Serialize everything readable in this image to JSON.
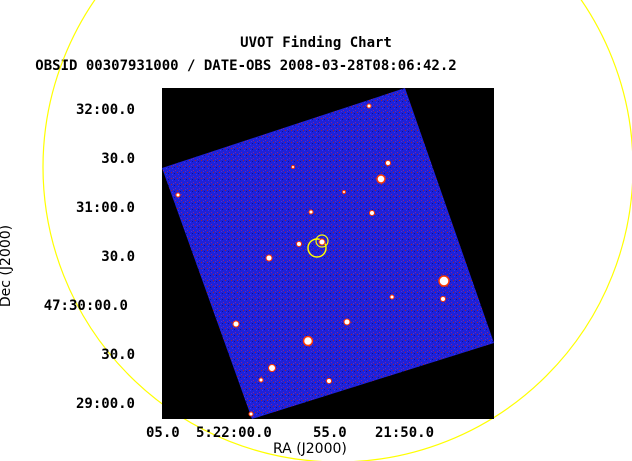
{
  "header": {
    "title": "UVOT Finding Chart",
    "subtitle": "OBSID 00307931000 / DATE-OBS 2008-03-28T08:06:42.2"
  },
  "axes": {
    "x_title": "RA (J2000)",
    "y_title": "Dec (J2000)",
    "x_ticks": [
      "05.0",
      "5:22:00.0",
      "55.0",
      "21:50.0"
    ],
    "y_ticks": [
      "32:00.0",
      "30.0",
      "31:00.0",
      "30.0",
      "47:30:00.0",
      "30.0",
      "29:00.0"
    ]
  },
  "colors": {
    "background": "#000000",
    "field": "#1a1fd6",
    "circle": "#ffff00",
    "marker": "#ffff00",
    "star": "#ffffff"
  }
}
